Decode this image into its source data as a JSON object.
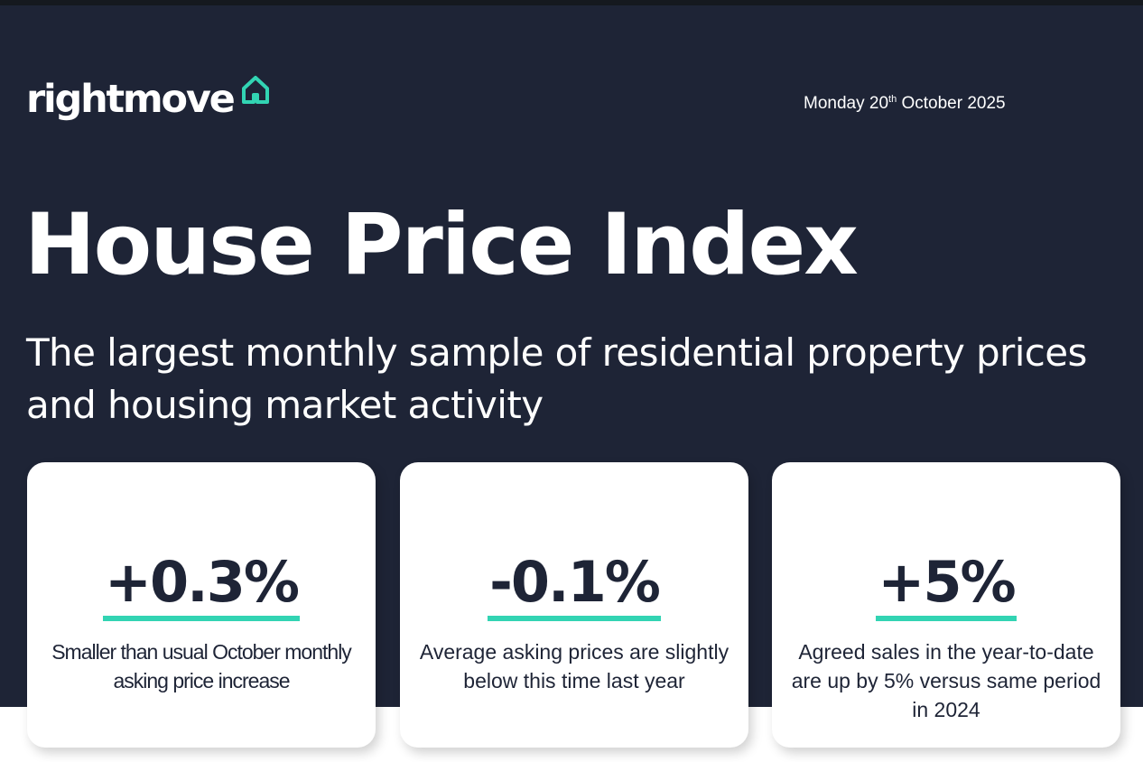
{
  "header": {
    "logo_text": "rightmove",
    "date_prefix": "Monday 20",
    "date_suffix": "th",
    "date_rest": " October 2025"
  },
  "hero": {
    "title": "House Price Index",
    "subtitle": "The largest monthly sample of residential property prices and housing market activity"
  },
  "cards": [
    {
      "value": "+0.3%",
      "description": "Smaller than usual October monthly asking price increase"
    },
    {
      "value": "-0.1%",
      "description": "Average asking prices are slightly below this time last year"
    },
    {
      "value": "+5%",
      "description": "Agreed sales in the year-to-date are up by 5% versus same period in 2024"
    }
  ],
  "colors": {
    "background": "#1e2436",
    "accent": "#32d4b3",
    "text_light": "#ffffff",
    "text_dark": "#1e2436"
  },
  "icons": {
    "logo": "house-outline-icon"
  }
}
